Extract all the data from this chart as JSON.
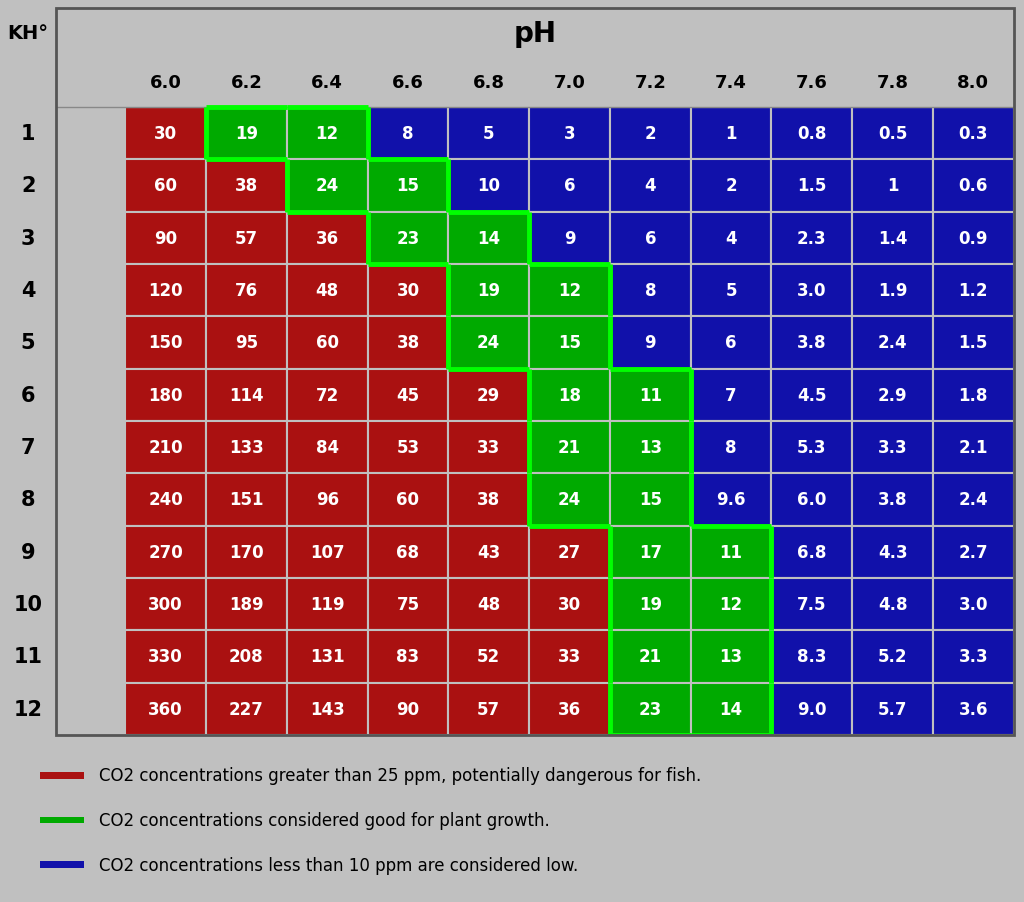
{
  "ph_labels": [
    "6.0",
    "6.2",
    "6.4",
    "6.6",
    "6.8",
    "7.0",
    "7.2",
    "7.4",
    "7.6",
    "7.8",
    "8.0"
  ],
  "kh_labels": [
    "1",
    "2",
    "3",
    "4",
    "5",
    "6",
    "7",
    "8",
    "9",
    "10",
    "11",
    "12"
  ],
  "table_values": [
    [
      "30",
      "19",
      "12",
      "8",
      "5",
      "3",
      "2",
      "1",
      "0.8",
      "0.5",
      "0.3"
    ],
    [
      "60",
      "38",
      "24",
      "15",
      "10",
      "6",
      "4",
      "2",
      "1.5",
      "1",
      "0.6"
    ],
    [
      "90",
      "57",
      "36",
      "23",
      "14",
      "9",
      "6",
      "4",
      "2.3",
      "1.4",
      "0.9"
    ],
    [
      "120",
      "76",
      "48",
      "30",
      "19",
      "12",
      "8",
      "5",
      "3.0",
      "1.9",
      "1.2"
    ],
    [
      "150",
      "95",
      "60",
      "38",
      "24",
      "15",
      "9",
      "6",
      "3.8",
      "2.4",
      "1.5"
    ],
    [
      "180",
      "114",
      "72",
      "45",
      "29",
      "18",
      "11",
      "7",
      "4.5",
      "2.9",
      "1.8"
    ],
    [
      "210",
      "133",
      "84",
      "53",
      "33",
      "21",
      "13",
      "8",
      "5.3",
      "3.3",
      "2.1"
    ],
    [
      "240",
      "151",
      "96",
      "60",
      "38",
      "24",
      "15",
      "9.6",
      "6.0",
      "3.8",
      "2.4"
    ],
    [
      "270",
      "170",
      "107",
      "68",
      "43",
      "27",
      "17",
      "11",
      "6.8",
      "4.3",
      "2.7"
    ],
    [
      "300",
      "189",
      "119",
      "75",
      "48",
      "30",
      "19",
      "12",
      "7.5",
      "4.8",
      "3.0"
    ],
    [
      "330",
      "208",
      "131",
      "83",
      "52",
      "33",
      "21",
      "13",
      "8.3",
      "5.2",
      "3.3"
    ],
    [
      "360",
      "227",
      "143",
      "90",
      "57",
      "36",
      "23",
      "14",
      "9.0",
      "5.7",
      "3.6"
    ]
  ],
  "color_red": "#AA1111",
  "color_green": "#00AA00",
  "color_blue": "#1111AA",
  "color_bg": "#C0C0C0",
  "border_green": "#00FF00",
  "title": "pH",
  "kh_header": "KH°",
  "legend_red_text": "CO2 concentrations greater than 25 ppm, potentially dangerous for fish.",
  "legend_green_text": "CO2 concentrations considered good for plant growth.",
  "legend_blue_text": "CO2 concentrations less than 10 ppm are considered low.",
  "red_min": 26,
  "green_min": 11,
  "green_max": 25,
  "blue_max": 10
}
